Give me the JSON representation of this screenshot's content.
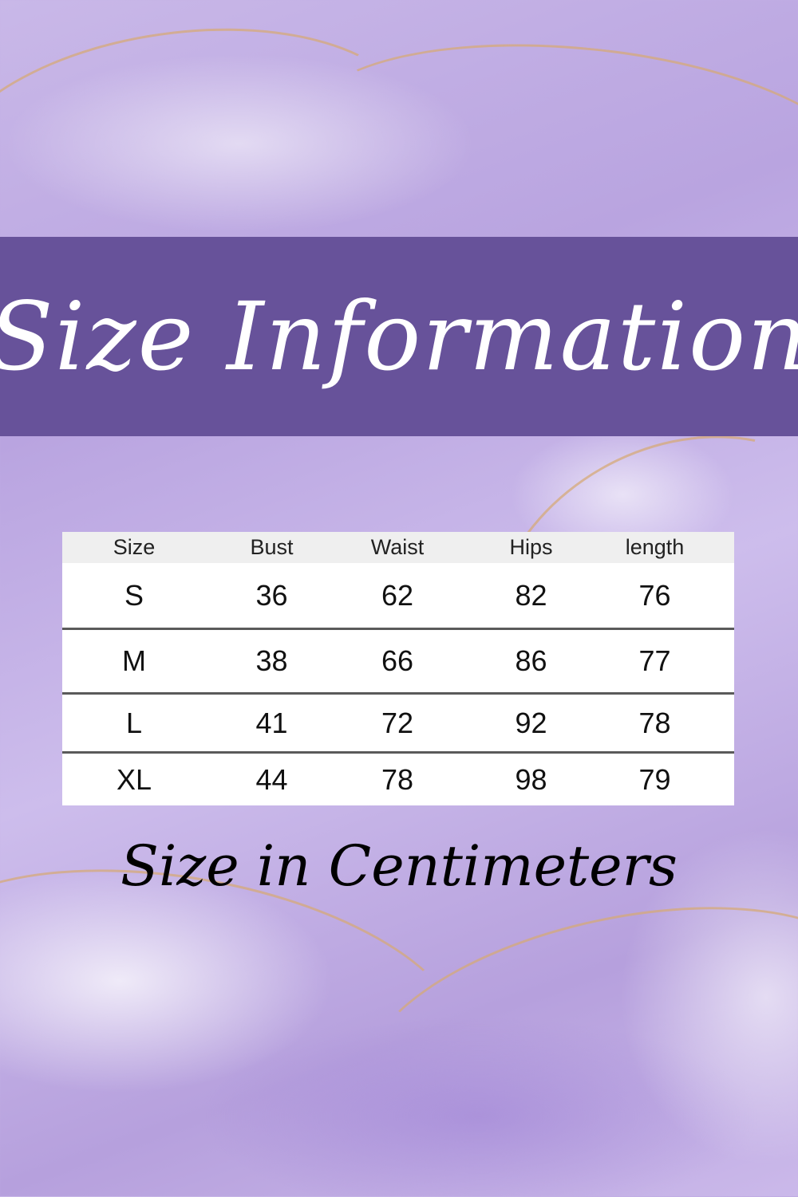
{
  "banner": {
    "title": "Size Information",
    "color": "#67529a"
  },
  "size_table": {
    "headers": [
      "Size",
      "Bust",
      "Waist",
      "Hips",
      "length"
    ],
    "rows": [
      [
        "S",
        "36",
        "62",
        "82",
        "76"
      ],
      [
        "M",
        "38",
        "66",
        "86",
        "77"
      ],
      [
        "L",
        "41",
        "72",
        "92",
        "78"
      ],
      [
        "XL",
        "44",
        "78",
        "98",
        "79"
      ]
    ]
  },
  "subtitle": "Size in Centimeters",
  "colors": {
    "background": "#c4b2e6",
    "gold_veins": "#d6aa78"
  }
}
